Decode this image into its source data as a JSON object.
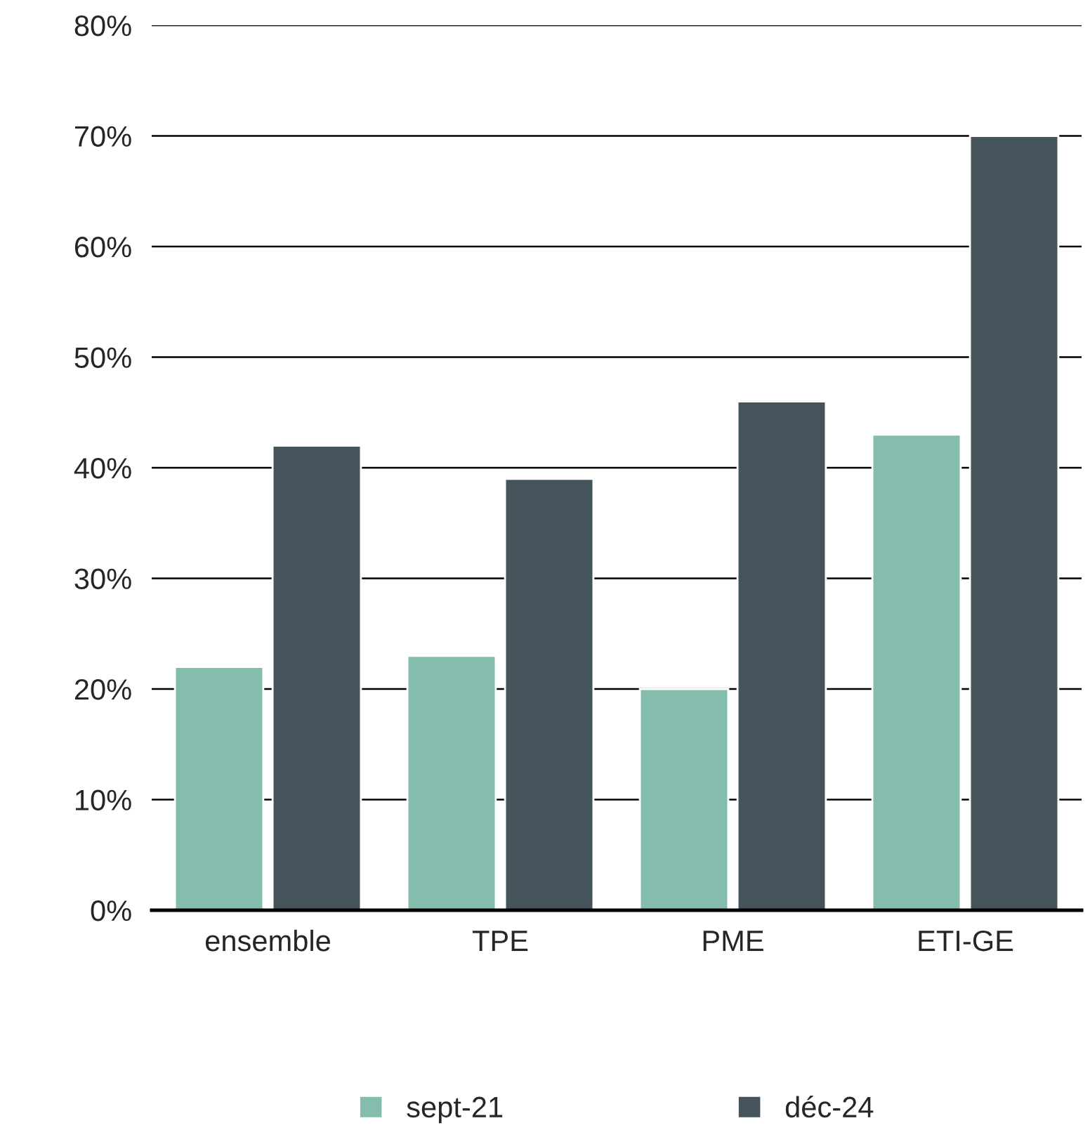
{
  "chart_data": {
    "type": "bar",
    "categories": [
      "ensemble",
      "TPE",
      "PME",
      "ETI-GE"
    ],
    "series": [
      {
        "name": "sept-21",
        "color": "#84bcad",
        "values": [
          22,
          23,
          20,
          43
        ]
      },
      {
        "name": "déc-24",
        "color": "#45535a",
        "values": [
          42,
          39,
          46,
          70
        ]
      }
    ],
    "ylim": [
      0,
      80
    ],
    "yticks": [
      {
        "value": 0,
        "label": "0%"
      },
      {
        "value": 10,
        "label": "10%"
      },
      {
        "value": 20,
        "label": "20%"
      },
      {
        "value": 30,
        "label": "30%"
      },
      {
        "value": 40,
        "label": "40%"
      },
      {
        "value": 50,
        "label": "50%"
      },
      {
        "value": 60,
        "label": "60%"
      },
      {
        "value": 70,
        "label": "70%"
      },
      {
        "value": 80,
        "label": "80%"
      }
    ],
    "grid": "y",
    "legend": "bottom"
  }
}
